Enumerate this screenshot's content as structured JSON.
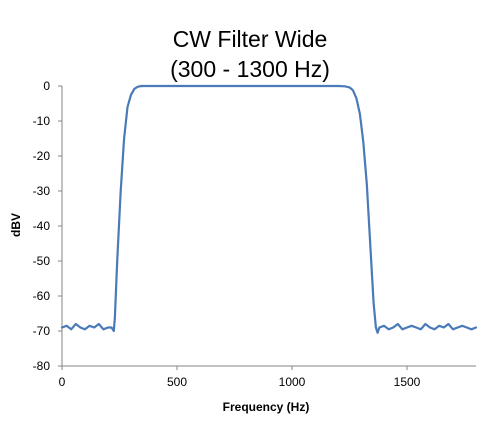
{
  "chart_data": {
    "type": "line",
    "title": "CW Filter Wide",
    "subtitle": "(300 - 1300 Hz)",
    "xlabel": "Frequency (Hz)",
    "ylabel": "dBV",
    "xlim": [
      0,
      1800
    ],
    "ylim": [
      -80,
      0
    ],
    "xticks": [
      0,
      500,
      1000,
      1500
    ],
    "xtick_labels": [
      "0",
      "500",
      "1000",
      "1500"
    ],
    "yticks": [
      0,
      -10,
      -20,
      -30,
      -40,
      -50,
      -60,
      -70,
      -80
    ],
    "ytick_labels": [
      "0",
      "-10",
      "-20",
      "-30",
      "-40",
      "-50",
      "-60",
      "-70",
      "-80"
    ],
    "grid": false,
    "line_color": "#4a7ab8",
    "series": [
      {
        "x": [
          0,
          20,
          40,
          60,
          80,
          100,
          120,
          140,
          160,
          180,
          200,
          215,
          225,
          230,
          240,
          255,
          270,
          285,
          300,
          315,
          330,
          345,
          360,
          400,
          600,
          800,
          1000,
          1200,
          1230,
          1250,
          1265,
          1280,
          1295,
          1310,
          1325,
          1340,
          1355,
          1365,
          1372,
          1380,
          1400,
          1420,
          1440,
          1460,
          1480,
          1500,
          1520,
          1540,
          1560,
          1580,
          1600,
          1620,
          1640,
          1660,
          1680,
          1700,
          1720,
          1740,
          1760,
          1780,
          1800
        ],
        "y": [
          -69,
          -68.5,
          -69.5,
          -68,
          -69,
          -69.5,
          -68.5,
          -69,
          -68,
          -69.5,
          -69,
          -69,
          -70,
          -66,
          -50,
          -30,
          -15,
          -6,
          -2.5,
          -0.8,
          -0.2,
          0,
          0,
          0,
          0,
          0,
          0,
          0,
          -0.1,
          -0.4,
          -1.2,
          -3.5,
          -8,
          -16,
          -28,
          -45,
          -62,
          -69,
          -70.5,
          -69,
          -68.5,
          -69.5,
          -69,
          -68,
          -69.5,
          -69,
          -68.5,
          -69,
          -69.5,
          -68,
          -69,
          -69.5,
          -68.5,
          -69,
          -68,
          -69.5,
          -69,
          -68.5,
          -69,
          -69.5,
          -69
        ]
      }
    ]
  }
}
